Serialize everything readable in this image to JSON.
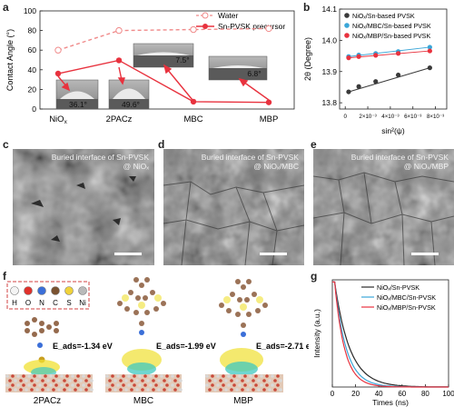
{
  "panel_labels": {
    "a": "a",
    "b": "b",
    "c": "c",
    "d": "d",
    "e": "e",
    "f": "f",
    "g": "g"
  },
  "panel_a": {
    "ylabel": "Contact Angle (°)",
    "yticks": [
      "0",
      "20",
      "40",
      "60",
      "80",
      "100"
    ],
    "legend": {
      "water": "Water",
      "precursor": "Sn-PVSK  precursor"
    },
    "inset_values": [
      "36.1°",
      "49.6°",
      "7.5°",
      "6.8°"
    ],
    "xlabels": [
      "NiO",
      "2PACz",
      "MBC",
      "MBP"
    ],
    "nio_subscript": "x",
    "colors": {
      "water": "#f08a8a",
      "precursor": "#e8323e"
    }
  },
  "panel_b": {
    "ylabel": "2θ (Degree)",
    "xlabel": "sin²(ψ)",
    "yticks": [
      "13.8",
      "13.9",
      "14.0",
      "14.1"
    ],
    "xticks": [
      "0",
      "2×10⁻³",
      "4×10⁻³",
      "6×10⁻³",
      "8×10⁻³"
    ],
    "legend": [
      "NiOₓ/Sn-based PVSK",
      "NiOₓ/MBC/Sn-based PVSK",
      "NiOₓ/MBP/Sn-based PVSK"
    ],
    "colors": [
      "#3a3a3a",
      "#3aa6d8",
      "#e8323e"
    ]
  },
  "panel_c": {
    "caption_line1": "Buried interface of Sn-PVSK",
    "caption_line2": "@ NiOₓ"
  },
  "panel_d": {
    "caption_line1": "Buried interface of Sn-PVSK",
    "caption_line2": "@ NiOₓ/MBC"
  },
  "panel_e": {
    "caption_line1": "Buried interface of Sn-PVSK",
    "caption_line2": "@ NiOₓ/MBP"
  },
  "panel_f": {
    "atom_legend": [
      "H",
      "O",
      "N",
      "C",
      "S",
      "Ni"
    ],
    "atom_colors": [
      "#f4f4f4",
      "#e0312b",
      "#3b6fd8",
      "#7a5230",
      "#f0d23a",
      "#b9b9b9"
    ],
    "energies": [
      "E_ads=-1.34 eV",
      "E_ads=-1.99 eV",
      "E_ads=-2.71 eV"
    ],
    "molecules": [
      "2PACz",
      "MBC",
      "MBP"
    ]
  },
  "panel_g": {
    "ylabel": "Intensity (a.u.)",
    "xlabel": "Times (ns)",
    "xticks": [
      "0",
      "20",
      "40",
      "60",
      "80",
      "100"
    ],
    "legend": [
      "NiOₓ/Sn-PVSK",
      "NiOₓ/MBC/Sn-PVSK",
      "NiOₓ/MBP/Sn-PVSK"
    ],
    "colors": [
      "#2a2a2a",
      "#3aa6d8",
      "#e8323e"
    ]
  },
  "chart_data": [
    {
      "type": "line",
      "panel": "a",
      "categories": [
        "NiOx",
        "2PACz",
        "MBC",
        "MBP"
      ],
      "ylabel": "Contact Angle (°)",
      "ylim": [
        0,
        100
      ],
      "series": [
        {
          "name": "Water",
          "values": [
            60,
            80,
            81,
            82
          ]
        },
        {
          "name": "Sn-PVSK  precursor",
          "values": [
            36.1,
            49.6,
            7.5,
            6.8
          ]
        }
      ]
    },
    {
      "type": "scatter",
      "panel": "b",
      "xlabel": "sin²(ψ)",
      "ylabel": "2θ (Degree)",
      "xlim": [
        -0.0005,
        0.009
      ],
      "ylim": [
        13.78,
        14.1
      ],
      "series": [
        {
          "name": "NiOₓ/Sn-based PVSK",
          "x": [
            0.0003,
            0.0012,
            0.0027,
            0.0047,
            0.0075
          ],
          "y": [
            13.835,
            13.852,
            13.868,
            13.889,
            13.912
          ]
        },
        {
          "name": "NiOₓ/MBC/Sn-based PVSK",
          "x": [
            0.0003,
            0.0012,
            0.0027,
            0.0047,
            0.0075
          ],
          "y": [
            13.948,
            13.953,
            13.958,
            13.964,
            13.978
          ]
        },
        {
          "name": "NiOₓ/MBP/Sn-based PVSK",
          "x": [
            0.0003,
            0.0012,
            0.0027,
            0.0047,
            0.0075
          ],
          "y": [
            13.944,
            13.948,
            13.952,
            13.958,
            13.966
          ]
        }
      ]
    },
    {
      "type": "line",
      "panel": "g",
      "xlabel": "Times (ns)",
      "ylabel": "Intensity (a.u.)",
      "xlim": [
        0,
        100
      ],
      "ylim": [
        0,
        1
      ],
      "series": [
        {
          "name": "NiOₓ/Sn-PVSK",
          "tau": 13
        },
        {
          "name": "NiOₓ/MBC/Sn-PVSK",
          "tau": 10
        },
        {
          "name": "NiOₓ/MBP/Sn-PVSK",
          "tau": 8.5
        }
      ]
    }
  ]
}
